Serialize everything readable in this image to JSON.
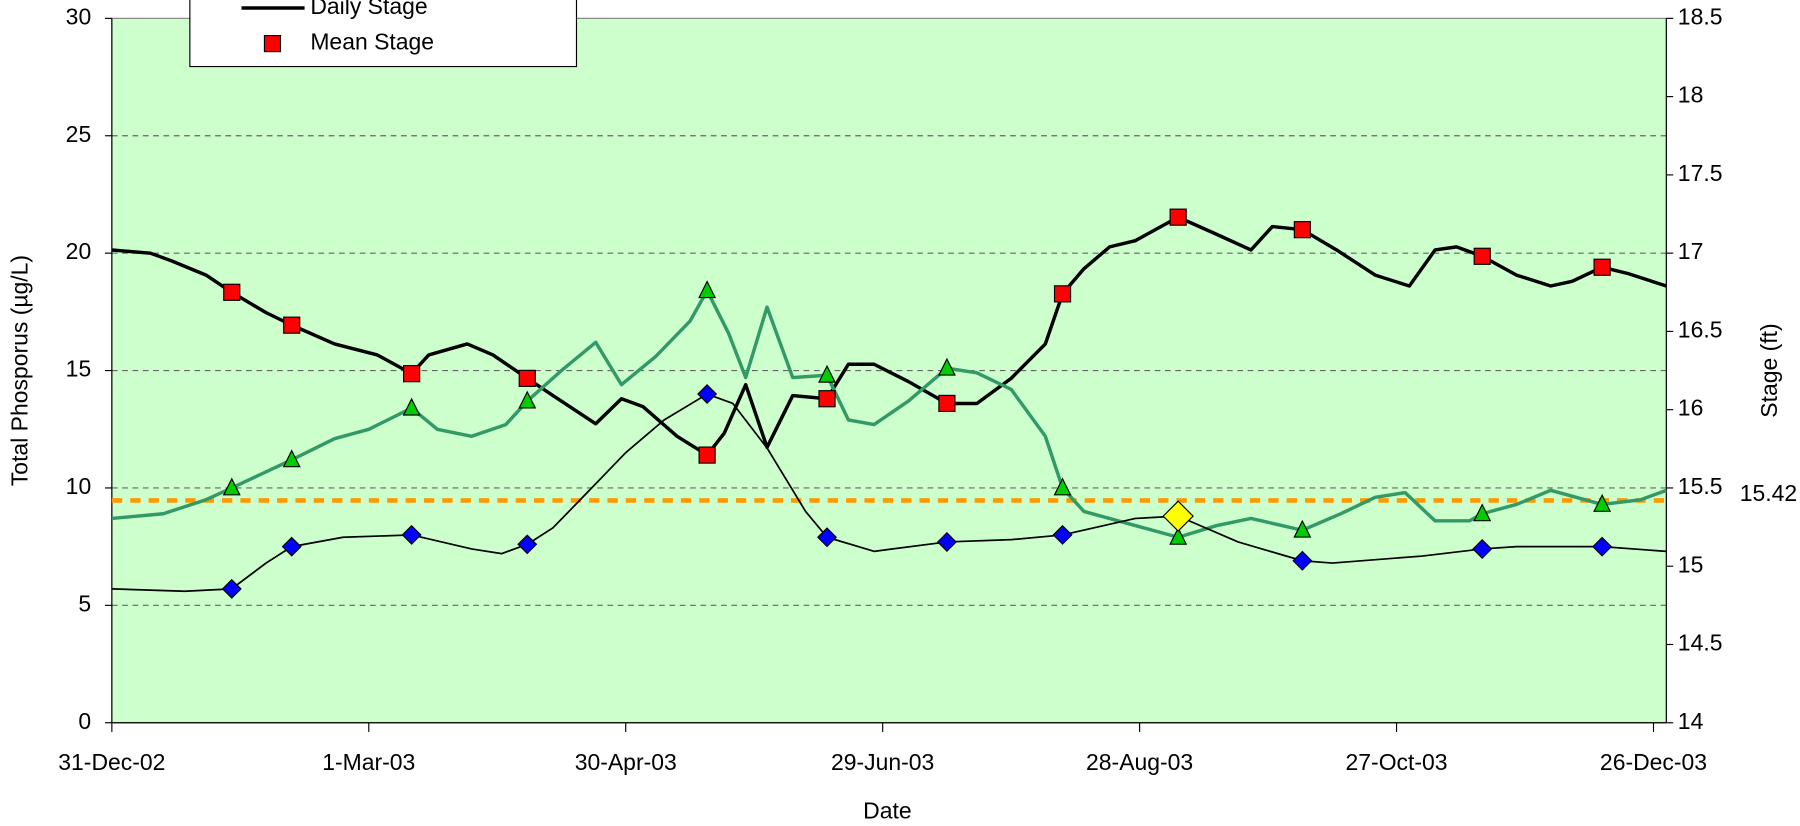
{
  "chart_data": {
    "type": "line",
    "x_label": "Date",
    "y_label": "Total Phosporus (µg/L)",
    "y2_label": "Stage (ft)",
    "xlim": [
      0,
      363
    ],
    "xticks": [
      {
        "value": 0,
        "label": "31-Dec-02"
      },
      {
        "value": 60,
        "label": "1-Mar-03"
      },
      {
        "value": 120,
        "label": "30-Apr-03"
      },
      {
        "value": 180,
        "label": "29-Jun-03"
      },
      {
        "value": 240,
        "label": "28-Aug-03"
      },
      {
        "value": 300,
        "label": "27-Oct-03"
      },
      {
        "value": 360,
        "label": "26-Dec-03"
      }
    ],
    "ylim": [
      0,
      30
    ],
    "yticks": [
      0,
      5,
      10,
      15,
      20,
      25,
      30
    ],
    "y2lim": [
      14,
      18.5
    ],
    "y2ticks": [
      14,
      14.5,
      15,
      15.5,
      16,
      16.5,
      17,
      17.5,
      18,
      18.5
    ],
    "grid": true,
    "background": "#ccffcc",
    "reference_line": {
      "value": 15.42,
      "axis": "y2",
      "color": "#ff9900"
    },
    "series": [
      {
        "name": "Daily Stage",
        "mark": "line",
        "line_width": 3,
        "color": "#000000",
        "axis": "y2",
        "x": [
          0,
          9,
          14,
          22,
          28,
          36,
          42,
          52,
          62,
          70,
          74,
          83,
          89,
          97,
          103,
          113,
          119,
          124,
          132,
          139,
          143,
          148,
          153,
          159,
          167,
          172,
          178,
          186,
          195,
          202,
          210,
          218,
          222,
          227,
          233,
          239,
          249,
          258,
          266,
          271,
          278,
          286,
          295,
          303,
          309,
          314,
          320,
          328,
          336,
          341,
          348,
          354,
          363
        ],
        "values": [
          17.02,
          17.0,
          16.95,
          16.86,
          16.75,
          16.62,
          16.54,
          16.42,
          16.35,
          16.23,
          16.35,
          16.42,
          16.35,
          16.2,
          16.09,
          15.91,
          16.07,
          16.02,
          15.83,
          15.71,
          15.85,
          16.16,
          15.76,
          16.09,
          16.07,
          16.29,
          16.29,
          16.18,
          16.04,
          16.04,
          16.2,
          16.42,
          16.74,
          16.9,
          17.04,
          17.08,
          17.23,
          17.12,
          17.02,
          17.17,
          17.15,
          17.02,
          16.86,
          16.79,
          17.02,
          17.04,
          16.98,
          16.86,
          16.79,
          16.82,
          16.91,
          16.87,
          16.79
        ]
      },
      {
        "name": "Mean Stage",
        "mark": "square",
        "color": "#ff0000",
        "axis": "y2",
        "x": [
          28,
          42,
          70,
          97,
          139,
          167,
          195,
          222,
          249,
          278,
          320,
          348
        ],
        "values": [
          16.75,
          16.54,
          16.23,
          16.2,
          15.71,
          16.07,
          16.04,
          16.74,
          17.23,
          17.15,
          16.98,
          16.91
        ]
      },
      {
        "mark": "line",
        "line_width": 3,
        "color": "#339966",
        "x": [
          0,
          12,
          22,
          28,
          42,
          52,
          60,
          70,
          76,
          84,
          92,
          97,
          105,
          113,
          119,
          127,
          135,
          139,
          144,
          148,
          153,
          159,
          167,
          172,
          178,
          186,
          195,
          202,
          210,
          218,
          222,
          227,
          239,
          249,
          258,
          266,
          278,
          287,
          295,
          302,
          309,
          317,
          320,
          328,
          336,
          348,
          357,
          363
        ],
        "values": [
          8.7,
          8.9,
          9.5,
          10.0,
          11.2,
          12.1,
          12.5,
          13.4,
          12.5,
          12.2,
          12.7,
          13.7,
          15.0,
          16.2,
          14.4,
          15.6,
          17.1,
          18.4,
          16.6,
          14.7,
          17.7,
          14.7,
          14.8,
          12.9,
          12.7,
          13.7,
          15.1,
          14.9,
          14.2,
          12.2,
          10.0,
          9.0,
          8.4,
          7.9,
          8.4,
          8.7,
          8.2,
          8.9,
          9.6,
          9.8,
          8.6,
          8.6,
          8.9,
          9.3,
          9.9,
          9.3,
          9.5,
          9.9
        ]
      },
      {
        "mark": "triangle",
        "color": "#00cc00",
        "x": [
          28,
          42,
          70,
          97,
          139,
          167,
          195,
          222,
          249,
          278,
          320,
          348
        ],
        "values": [
          10.0,
          11.2,
          13.4,
          13.7,
          18.4,
          14.8,
          15.1,
          10.0,
          7.9,
          8.2,
          8.9,
          9.3
        ]
      },
      {
        "mark": "line",
        "line_width": 1.5,
        "color": "#000000",
        "x": [
          0,
          17,
          28,
          36,
          42,
          54,
          70,
          84,
          91,
          97,
          103,
          111,
          120,
          129,
          139,
          145,
          153,
          162,
          167,
          178,
          195,
          210,
          222,
          239,
          249,
          263,
          278,
          285,
          306,
          320,
          328,
          348,
          363
        ],
        "values": [
          5.7,
          5.6,
          5.7,
          6.8,
          7.5,
          7.9,
          8.0,
          7.4,
          7.2,
          7.6,
          8.3,
          9.8,
          11.5,
          12.9,
          14.0,
          13.6,
          11.7,
          9.0,
          7.9,
          7.3,
          7.7,
          7.8,
          8.0,
          8.7,
          8.8,
          7.7,
          6.9,
          6.8,
          7.1,
          7.4,
          7.5,
          7.5,
          7.3
        ]
      },
      {
        "mark": "diamond",
        "color": "#0000ff",
        "x": [
          28,
          42,
          70,
          97,
          139,
          167,
          195,
          222,
          278,
          320,
          348
        ],
        "values": [
          5.7,
          7.5,
          8.0,
          7.6,
          14.0,
          7.9,
          7.7,
          8.0,
          6.9,
          7.4,
          7.5
        ]
      },
      {
        "mark": "diamond",
        "size": 13,
        "color": "#ffff00",
        "x": [
          249
        ],
        "values": [
          8.8
        ]
      }
    ]
  }
}
